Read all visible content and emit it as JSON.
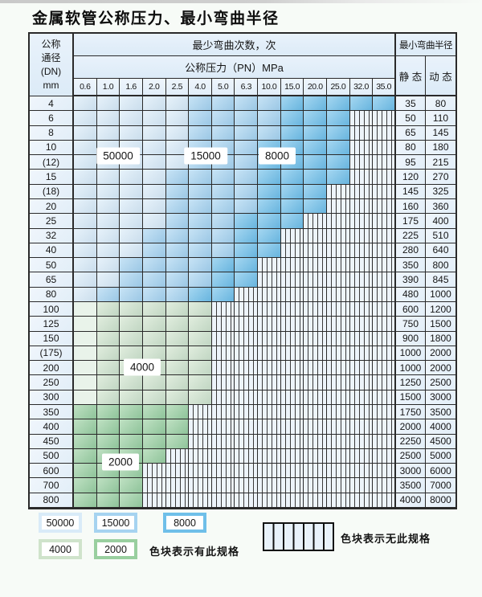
{
  "title": "金属软管公称压力、最小弯曲半径",
  "table": {
    "header": {
      "dn_lines": [
        "公称",
        "通径",
        "(DN)",
        "mm"
      ],
      "bend_count_title": "最少弯曲次数，次",
      "pressure_title": "公称压力（PN）MPa",
      "pressures": [
        "0.6",
        "1.0",
        "1.6",
        "2.0",
        "2.5",
        "4.0",
        "5.0",
        "6.3",
        "10.0",
        "15.0",
        "20.0",
        "25.0",
        "32.0",
        "35.0"
      ],
      "radius_title": "最小弯曲半径",
      "static_label": "静 态",
      "dynamic_label": "动 态"
    },
    "rows": [
      {
        "dn": "4",
        "static_radius": "35",
        "dynamic_radius": "80",
        "cells": [
          "50000",
          "50000",
          "50000",
          "50000",
          "50000",
          "15000",
          "15000",
          "15000",
          "15000",
          "8000",
          "8000",
          "8000",
          "8000",
          "8000"
        ]
      },
      {
        "dn": "6",
        "static_radius": "50",
        "dynamic_radius": "110",
        "cells": [
          "50000",
          "50000",
          "50000",
          "50000",
          "50000",
          "15000",
          "15000",
          "15000",
          "15000",
          "8000",
          "8000",
          "8000",
          "none",
          "none"
        ]
      },
      {
        "dn": "8",
        "static_radius": "65",
        "dynamic_radius": "145",
        "cells": [
          "50000",
          "50000",
          "50000",
          "50000",
          "50000",
          "15000",
          "15000",
          "15000",
          "15000",
          "8000",
          "8000",
          "8000",
          "none",
          "none"
        ]
      },
      {
        "dn": "10",
        "static_radius": "80",
        "dynamic_radius": "180",
        "cells": [
          "50000",
          "50000",
          "50000",
          "50000",
          "50000",
          "15000",
          "15000",
          "15000",
          "8000",
          "8000",
          "8000",
          "8000",
          "none",
          "none"
        ]
      },
      {
        "dn": "(12)",
        "static_radius": "95",
        "dynamic_radius": "215",
        "cells": [
          "50000",
          "50000",
          "50000",
          "50000",
          "50000",
          "15000",
          "15000",
          "15000",
          "8000",
          "8000",
          "8000",
          "8000",
          "none",
          "none"
        ]
      },
      {
        "dn": "15",
        "static_radius": "120",
        "dynamic_radius": "270",
        "cells": [
          "50000",
          "50000",
          "50000",
          "50000",
          "15000",
          "15000",
          "15000",
          "15000",
          "8000",
          "8000",
          "8000",
          "8000",
          "none",
          "none"
        ]
      },
      {
        "dn": "(18)",
        "static_radius": "145",
        "dynamic_radius": "325",
        "cells": [
          "50000",
          "50000",
          "50000",
          "50000",
          "15000",
          "15000",
          "15000",
          "15000",
          "8000",
          "8000",
          "8000",
          "none",
          "none",
          "none"
        ]
      },
      {
        "dn": "20",
        "static_radius": "160",
        "dynamic_radius": "360",
        "cells": [
          "50000",
          "50000",
          "50000",
          "50000",
          "15000",
          "15000",
          "15000",
          "15000",
          "8000",
          "8000",
          "8000",
          "none",
          "none",
          "none"
        ]
      },
      {
        "dn": "25",
        "static_radius": "175",
        "dynamic_radius": "400",
        "cells": [
          "50000",
          "50000",
          "50000",
          "50000",
          "15000",
          "15000",
          "15000",
          "8000",
          "8000",
          "8000",
          "none",
          "none",
          "none",
          "none"
        ]
      },
      {
        "dn": "32",
        "static_radius": "225",
        "dynamic_radius": "510",
        "cells": [
          "50000",
          "50000",
          "50000",
          "15000",
          "15000",
          "15000",
          "15000",
          "8000",
          "8000",
          "none",
          "none",
          "none",
          "none",
          "none"
        ]
      },
      {
        "dn": "40",
        "static_radius": "280",
        "dynamic_radius": "640",
        "cells": [
          "50000",
          "50000",
          "50000",
          "15000",
          "15000",
          "15000",
          "15000",
          "8000",
          "8000",
          "none",
          "none",
          "none",
          "none",
          "none"
        ]
      },
      {
        "dn": "50",
        "static_radius": "350",
        "dynamic_radius": "800",
        "cells": [
          "50000",
          "50000",
          "15000",
          "15000",
          "15000",
          "15000",
          "8000",
          "8000",
          "none",
          "none",
          "none",
          "none",
          "none",
          "none"
        ]
      },
      {
        "dn": "65",
        "static_radius": "390",
        "dynamic_radius": "845",
        "cells": [
          "50000",
          "50000",
          "15000",
          "15000",
          "15000",
          "15000",
          "8000",
          "8000",
          "none",
          "none",
          "none",
          "none",
          "none",
          "none"
        ]
      },
      {
        "dn": "80",
        "static_radius": "480",
        "dynamic_radius": "1000",
        "cells": [
          "50000",
          "15000",
          "15000",
          "15000",
          "15000",
          "8000",
          "8000",
          "none",
          "none",
          "none",
          "none",
          "none",
          "none",
          "none"
        ]
      },
      {
        "dn": "100",
        "static_radius": "600",
        "dynamic_radius": "1200",
        "cells": [
          "4000-light",
          "4000",
          "4000",
          "4000",
          "4000",
          "4000",
          "none",
          "none",
          "none",
          "none",
          "none",
          "none",
          "none",
          "none"
        ]
      },
      {
        "dn": "125",
        "static_radius": "750",
        "dynamic_radius": "1500",
        "cells": [
          "4000-light",
          "4000",
          "4000",
          "4000",
          "4000",
          "4000",
          "none",
          "none",
          "none",
          "none",
          "none",
          "none",
          "none",
          "none"
        ]
      },
      {
        "dn": "150",
        "static_radius": "900",
        "dynamic_radius": "1800",
        "cells": [
          "4000-light",
          "4000",
          "4000",
          "4000",
          "4000",
          "4000",
          "none",
          "none",
          "none",
          "none",
          "none",
          "none",
          "none",
          "none"
        ]
      },
      {
        "dn": "(175)",
        "static_radius": "1000",
        "dynamic_radius": "2000",
        "cells": [
          "4000-light",
          "4000",
          "4000",
          "4000",
          "4000",
          "4000",
          "none",
          "none",
          "none",
          "none",
          "none",
          "none",
          "none",
          "none"
        ]
      },
      {
        "dn": "200",
        "static_radius": "1000",
        "dynamic_radius": "2000",
        "cells": [
          "4000-light",
          "4000",
          "4000",
          "4000",
          "4000",
          "4000",
          "none",
          "none",
          "none",
          "none",
          "none",
          "none",
          "none",
          "none"
        ]
      },
      {
        "dn": "250",
        "static_radius": "1250",
        "dynamic_radius": "2500",
        "cells": [
          "4000-light",
          "4000",
          "4000",
          "4000",
          "4000",
          "4000",
          "none",
          "none",
          "none",
          "none",
          "none",
          "none",
          "none",
          "none"
        ]
      },
      {
        "dn": "300",
        "static_radius": "1500",
        "dynamic_radius": "3000",
        "cells": [
          "4000-light",
          "4000",
          "4000",
          "4000",
          "4000",
          "4000",
          "none",
          "none",
          "none",
          "none",
          "none",
          "none",
          "none",
          "none"
        ]
      },
      {
        "dn": "350",
        "static_radius": "1750",
        "dynamic_radius": "3500",
        "cells": [
          "2000",
          "2000",
          "2000",
          "2000",
          "2000",
          "none",
          "none",
          "none",
          "none",
          "none",
          "none",
          "none",
          "none",
          "none"
        ]
      },
      {
        "dn": "400",
        "static_radius": "2000",
        "dynamic_radius": "4000",
        "cells": [
          "2000",
          "2000",
          "2000",
          "2000",
          "2000",
          "none",
          "none",
          "none",
          "none",
          "none",
          "none",
          "none",
          "none",
          "none"
        ]
      },
      {
        "dn": "450",
        "static_radius": "2250",
        "dynamic_radius": "4500",
        "cells": [
          "2000",
          "2000",
          "2000",
          "2000",
          "2000",
          "none",
          "none",
          "none",
          "none",
          "none",
          "none",
          "none",
          "none",
          "none"
        ]
      },
      {
        "dn": "500",
        "static_radius": "2500",
        "dynamic_radius": "5000",
        "cells": [
          "2000",
          "2000",
          "2000",
          "2000",
          "none",
          "none",
          "none",
          "none",
          "none",
          "none",
          "none",
          "none",
          "none",
          "none"
        ]
      },
      {
        "dn": "600",
        "static_radius": "3000",
        "dynamic_radius": "6000",
        "cells": [
          "2000",
          "2000",
          "2000",
          "none",
          "none",
          "none",
          "none",
          "none",
          "none",
          "none",
          "none",
          "none",
          "none",
          "none"
        ]
      },
      {
        "dn": "700",
        "static_radius": "3500",
        "dynamic_radius": "7000",
        "cells": [
          "2000",
          "2000",
          "2000",
          "none",
          "none",
          "none",
          "none",
          "none",
          "none",
          "none",
          "none",
          "none",
          "none",
          "none"
        ]
      },
      {
        "dn": "800",
        "static_radius": "4000",
        "dynamic_radius": "8000",
        "cells": [
          "2000",
          "2000",
          "2000",
          "none",
          "none",
          "none",
          "none",
          "none",
          "none",
          "none",
          "none",
          "none",
          "none",
          "none"
        ]
      }
    ],
    "overlay_tags": [
      "50000",
      "15000",
      "8000",
      "4000",
      "2000"
    ]
  },
  "legend": {
    "swatches": [
      {
        "label": "50000",
        "spec": "50000"
      },
      {
        "label": "15000",
        "spec": "15000"
      },
      {
        "label": "8000",
        "spec": "8000"
      },
      {
        "label": "4000",
        "spec": "4000"
      },
      {
        "label": "2000",
        "spec": "2000"
      }
    ],
    "has_spec_text": "色块表示有此规格",
    "no_spec_text": "色块表示无此规格"
  },
  "colors": {
    "spec_50000": "#d9ebf8",
    "spec_15000": "#a6d3f0",
    "spec_8000": "#6fbfe9",
    "spec_4000": "#cfe3cb",
    "spec_2000": "#99cf9f",
    "no_spec_hatch_bg": "#edf4fa",
    "border": "#2a2a2a"
  }
}
